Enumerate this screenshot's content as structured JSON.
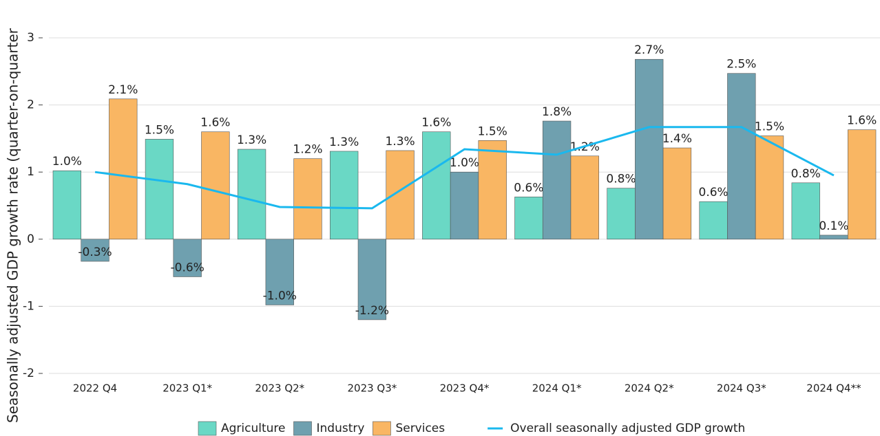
{
  "chart_data": {
    "type": "bar",
    "y_label": "Seasonally adjusted GDP growth rate (quarter-on-quarter",
    "categories": [
      "2022 Q4",
      "2023 Q1*",
      "2023 Q2*",
      "2023 Q3*",
      "2023 Q4*",
      "2024 Q1*",
      "2024 Q2*",
      "2024 Q3*",
      "2024 Q4**"
    ],
    "series": [
      {
        "name": "Agriculture",
        "type": "bar",
        "color": "#6ad8c5",
        "values": [
          1.02,
          1.49,
          1.34,
          1.31,
          1.6,
          0.63,
          0.76,
          0.56,
          0.84
        ],
        "value_labels": [
          "1.0%",
          "1.5%",
          "1.3%",
          "1.3%",
          "1.6%",
          "0.6%",
          "0.8%",
          "0.6%",
          "0.8%"
        ]
      },
      {
        "name": "Industry",
        "type": "bar",
        "color": "#6fa0af",
        "values": [
          -0.33,
          -0.56,
          -0.98,
          -1.2,
          1.0,
          1.76,
          2.68,
          2.47,
          0.06
        ],
        "value_labels": [
          "-0.3%",
          "-0.6%",
          "-1.0%",
          "-1.2%",
          "1.0%",
          "1.8%",
          "2.7%",
          "2.5%",
          "0.1%"
        ]
      },
      {
        "name": "Services",
        "type": "bar",
        "color": "#f9b663",
        "values": [
          2.09,
          1.6,
          1.2,
          1.32,
          1.47,
          1.24,
          1.36,
          1.54,
          1.63
        ],
        "value_labels": [
          "2.1%",
          "1.6%",
          "1.2%",
          "1.3%",
          "1.5%",
          "1.2%",
          "1.4%",
          "1.5%",
          "1.6%"
        ]
      },
      {
        "name": "Overall seasonally adjusted GDP growth",
        "type": "line",
        "color": "#1ab8ee",
        "values": [
          1.0,
          0.82,
          0.48,
          0.46,
          1.34,
          1.26,
          1.67,
          1.67,
          0.95
        ]
      }
    ],
    "ylim": [
      -2,
      3
    ],
    "yticks": [
      -2,
      -1,
      0,
      1,
      2,
      3
    ],
    "grid": true
  }
}
